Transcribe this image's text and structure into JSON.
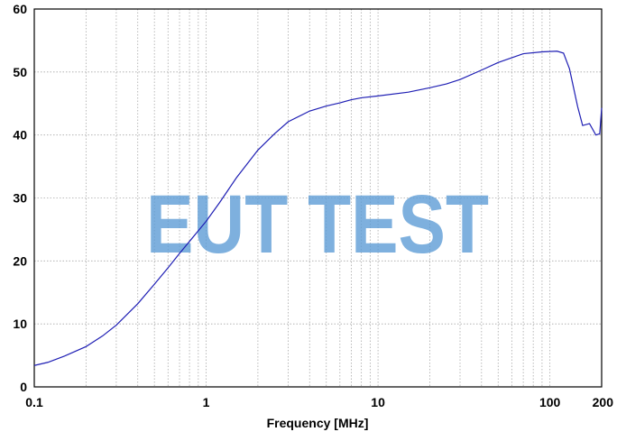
{
  "watermark": "EUT TEST",
  "chart_data": {
    "type": "line",
    "title": "",
    "xlabel": "Frequency [MHz]",
    "ylabel": "",
    "x_scale": "log",
    "xlim": [
      0.1,
      200
    ],
    "ylim": [
      0,
      60
    ],
    "x_tick_labels": [
      "0.1",
      "1",
      "10",
      "100",
      "200"
    ],
    "x_tick_values": [
      0.1,
      1,
      10,
      100,
      200
    ],
    "y_tick_labels": [
      "0",
      "10",
      "20",
      "30",
      "40",
      "50",
      "60"
    ],
    "y_tick_values": [
      0,
      10,
      20,
      30,
      40,
      50,
      60
    ],
    "grid": true,
    "line_color": "#1f1fb4",
    "grid_color": "#a8a8a8",
    "watermark_color": "#5b9bd5",
    "series": [
      {
        "x": [
          0.1,
          0.12,
          0.15,
          0.2,
          0.25,
          0.3,
          0.4,
          0.5,
          0.6,
          0.7,
          0.8,
          1,
          1.2,
          1.5,
          2,
          2.5,
          3,
          4,
          5,
          6,
          7,
          8,
          10,
          15,
          20,
          25,
          30,
          40,
          50,
          70,
          90,
          110,
          120,
          130,
          145,
          155,
          170,
          185,
          195,
          200
        ],
        "y": [
          3.4,
          3.9,
          4.9,
          6.4,
          8.1,
          9.8,
          13.2,
          16.3,
          18.9,
          21.2,
          23.1,
          26.3,
          29.3,
          33.2,
          37.6,
          40.2,
          42.1,
          43.8,
          44.6,
          45.1,
          45.6,
          45.9,
          46.2,
          46.8,
          47.5,
          48.1,
          48.8,
          50.3,
          51.5,
          52.9,
          53.2,
          53.3,
          53.0,
          50.5,
          44.5,
          41.5,
          41.8,
          40.0,
          40.2,
          44.3
        ]
      }
    ]
  }
}
